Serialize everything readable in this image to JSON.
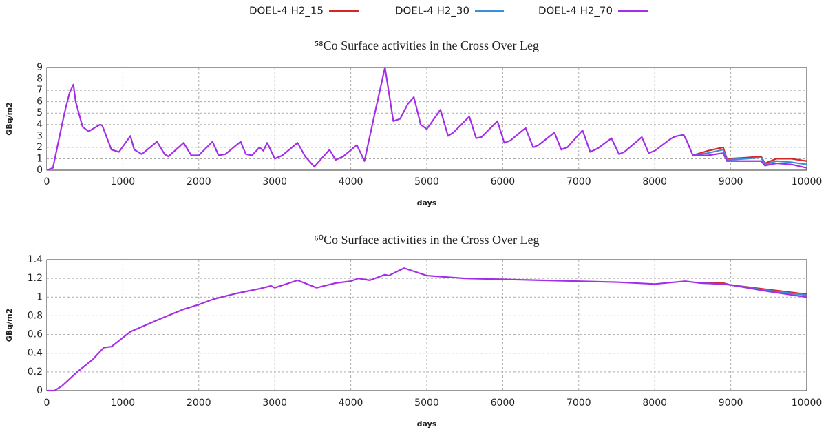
{
  "chart_data": [
    {
      "type": "line",
      "title": "⁵⁸Co Surface activities in the Cross Over Leg",
      "x_label": "days",
      "y_label": "GBq/m2",
      "xlim": [
        0,
        10000
      ],
      "xticks": [
        0,
        1000,
        2000,
        3000,
        4000,
        5000,
        6000,
        7000,
        8000,
        9000,
        10000
      ],
      "ylim": [
        0,
        9
      ],
      "yticks": [
        0,
        1,
        2,
        3,
        4,
        5,
        6,
        7,
        8,
        9
      ],
      "grid": true,
      "x": [
        0,
        80,
        200,
        250,
        300,
        350,
        380,
        470,
        550,
        700,
        730,
        850,
        950,
        1100,
        1150,
        1250,
        1450,
        1550,
        1600,
        1800,
        1900,
        2000,
        2180,
        2260,
        2350,
        2550,
        2620,
        2700,
        2800,
        2850,
        2900,
        3000,
        3100,
        3300,
        3400,
        3520,
        3720,
        3800,
        3900,
        4080,
        4180,
        4300,
        4450,
        4560,
        4650,
        4750,
        4830,
        4920,
        5000,
        5180,
        5280,
        5350,
        5560,
        5650,
        5720,
        5930,
        6020,
        6100,
        6300,
        6400,
        6470,
        6680,
        6770,
        6850,
        7050,
        7150,
        7250,
        7430,
        7530,
        7600,
        7830,
        7920,
        8000,
        8200,
        8250,
        8300,
        8380,
        8420,
        8500,
        8700,
        8900,
        8950,
        9200,
        9400,
        9450,
        9600,
        9800,
        10000
      ],
      "series": [
        {
          "name": "DOEL-4 H2_15",
          "color": "#d62728",
          "values": [
            null,
            null,
            null,
            null,
            null,
            null,
            null,
            null,
            null,
            null,
            null,
            null,
            null,
            null,
            null,
            null,
            null,
            null,
            null,
            null,
            null,
            null,
            null,
            null,
            null,
            null,
            null,
            null,
            null,
            null,
            null,
            null,
            null,
            null,
            null,
            null,
            null,
            null,
            null,
            null,
            null,
            null,
            null,
            null,
            null,
            null,
            null,
            null,
            null,
            null,
            null,
            null,
            null,
            null,
            null,
            null,
            null,
            null,
            null,
            null,
            null,
            null,
            null,
            null,
            null,
            null,
            null,
            null,
            null,
            null,
            null,
            null,
            null,
            null,
            null,
            null,
            null,
            null,
            1.3,
            1.7,
            2.0,
            1.0,
            1.1,
            1.2,
            0.6,
            1.0,
            1.0,
            0.8
          ]
        },
        {
          "name": "DOEL-4 H2_30",
          "color": "#3a8fd9",
          "values": [
            null,
            null,
            null,
            null,
            null,
            null,
            null,
            null,
            null,
            null,
            null,
            null,
            null,
            null,
            null,
            null,
            null,
            null,
            null,
            null,
            null,
            null,
            null,
            null,
            null,
            null,
            null,
            null,
            null,
            null,
            null,
            null,
            null,
            null,
            null,
            null,
            null,
            null,
            null,
            null,
            null,
            null,
            null,
            null,
            null,
            null,
            null,
            null,
            null,
            null,
            null,
            null,
            null,
            null,
            null,
            null,
            null,
            null,
            null,
            null,
            null,
            null,
            null,
            null,
            null,
            null,
            null,
            null,
            null,
            null,
            null,
            null,
            null,
            null,
            null,
            null,
            null,
            null,
            1.3,
            1.5,
            1.8,
            0.9,
            1.0,
            1.1,
            0.5,
            0.8,
            0.7,
            0.5
          ]
        },
        {
          "name": "DOEL-4 H2_70",
          "color": "#a42ee8",
          "values": [
            0,
            0.2,
            4,
            5.5,
            6.8,
            7.5,
            6,
            3.8,
            3.4,
            4.0,
            3.9,
            1.8,
            1.6,
            3.0,
            1.8,
            1.4,
            2.5,
            1.4,
            1.2,
            2.4,
            1.3,
            1.3,
            2.5,
            1.3,
            1.4,
            2.5,
            1.4,
            1.3,
            2.0,
            1.7,
            2.4,
            1.0,
            1.3,
            2.4,
            1.2,
            0.3,
            1.8,
            0.9,
            1.2,
            2.2,
            0.8,
            4.5,
            9.0,
            4.3,
            4.5,
            5.8,
            6.4,
            4.0,
            3.6,
            5.3,
            3.0,
            3.3,
            4.7,
            2.8,
            2.9,
            4.3,
            2.4,
            2.6,
            3.7,
            2.0,
            2.2,
            3.3,
            1.8,
            2.0,
            3.5,
            1.6,
            1.9,
            2.8,
            1.4,
            1.6,
            2.9,
            1.5,
            1.7,
            2.7,
            2.9,
            3.0,
            3.1,
            2.6,
            1.3,
            1.3,
            1.5,
            0.8,
            0.8,
            0.8,
            0.4,
            0.6,
            0.5,
            0.2
          ]
        }
      ]
    },
    {
      "type": "line",
      "title": "⁶⁰Co Surface activities in the Cross Over Leg",
      "x_label": "days",
      "y_label": "GBq/m2",
      "xlim": [
        0,
        10000
      ],
      "xticks": [
        0,
        1000,
        2000,
        3000,
        4000,
        5000,
        6000,
        7000,
        8000,
        9000,
        10000
      ],
      "ylim": [
        0,
        1.4
      ],
      "yticks": [
        0,
        0.2,
        0.4,
        0.6,
        0.8,
        1,
        1.2,
        1.4
      ],
      "grid": true,
      "x": [
        0,
        100,
        200,
        400,
        600,
        750,
        850,
        1100,
        1300,
        1500,
        1800,
        2000,
        2200,
        2500,
        2800,
        2950,
        3000,
        3300,
        3550,
        3800,
        4000,
        4100,
        4250,
        4450,
        4500,
        4700,
        4850,
        5000,
        5500,
        6000,
        6500,
        7000,
        7500,
        8000,
        8400,
        8600,
        8900,
        9000,
        9500,
        10000
      ],
      "series": [
        {
          "color": "#d62728",
          "values": [
            null,
            null,
            null,
            null,
            null,
            null,
            null,
            null,
            null,
            null,
            null,
            null,
            null,
            null,
            null,
            null,
            null,
            null,
            null,
            null,
            null,
            null,
            null,
            null,
            null,
            null,
            null,
            null,
            null,
            null,
            null,
            null,
            null,
            null,
            null,
            1.15,
            1.15,
            1.13,
            1.08,
            1.03
          ]
        },
        {
          "color": "#3a8fd9",
          "values": [
            null,
            null,
            null,
            null,
            null,
            null,
            null,
            null,
            null,
            null,
            null,
            null,
            null,
            null,
            null,
            null,
            null,
            null,
            null,
            null,
            null,
            null,
            null,
            null,
            null,
            null,
            null,
            null,
            null,
            null,
            null,
            null,
            null,
            null,
            null,
            1.15,
            1.14,
            1.13,
            1.07,
            1.02
          ]
        },
        {
          "color": "#a42ee8",
          "values": [
            0,
            0,
            0.05,
            0.2,
            0.33,
            0.46,
            0.47,
            0.63,
            0.7,
            0.77,
            0.87,
            0.92,
            0.98,
            1.04,
            1.09,
            1.12,
            1.1,
            1.18,
            1.1,
            1.15,
            1.17,
            1.2,
            1.18,
            1.24,
            1.23,
            1.31,
            1.27,
            1.23,
            1.2,
            1.19,
            1.18,
            1.17,
            1.16,
            1.14,
            1.17,
            1.15,
            1.14,
            1.13,
            1.06,
            1.0
          ]
        }
      ]
    }
  ]
}
